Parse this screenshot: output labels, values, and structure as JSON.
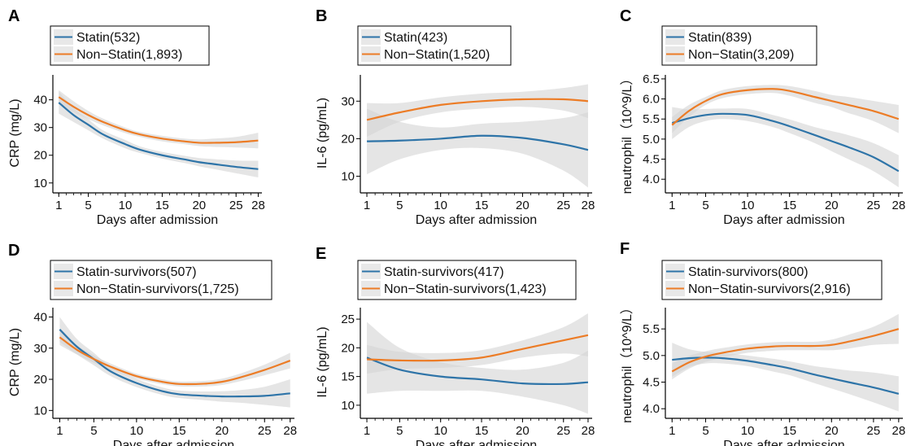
{
  "colors": {
    "statin": "#2e74a8",
    "non_statin": "#ec7c26",
    "ribbon": "#d3d3d3"
  },
  "chart_data": [
    {
      "type": "line",
      "panel": "A",
      "xlabel": "Days after admission",
      "ylabel": "CRP (mg/L)",
      "xticks": [
        1,
        5,
        10,
        15,
        20,
        25,
        28
      ],
      "yticks": [
        10,
        20,
        30,
        40
      ],
      "xlim": [
        0.2,
        28.5
      ],
      "ylim": [
        7,
        49
      ],
      "series": [
        {
          "name": "Statin(532)",
          "x": [
            1,
            3,
            5,
            7,
            10,
            12,
            15,
            18,
            20,
            22,
            25,
            28
          ],
          "y": [
            39,
            34.5,
            31,
            27.5,
            24,
            22,
            20,
            18.5,
            17.5,
            16.8,
            15.8,
            15
          ],
          "lower": [
            35,
            32,
            29,
            26,
            22.5,
            20.8,
            18.8,
            17.2,
            16,
            15,
            13.5,
            12
          ],
          "upper": [
            43,
            37,
            33,
            29,
            25.5,
            23.2,
            21.2,
            19.8,
            19,
            18.6,
            18.1,
            18
          ]
        },
        {
          "name": "Non−Statin(1,893)",
          "x": [
            1,
            3,
            5,
            7,
            10,
            12,
            15,
            18,
            20,
            22,
            25,
            28
          ],
          "y": [
            41,
            37.5,
            34.5,
            32,
            29,
            27.5,
            26,
            25,
            24.5,
            24.5,
            24.7,
            25.3
          ],
          "lower": [
            38.5,
            35.5,
            33,
            30.8,
            28,
            26.6,
            25,
            24,
            23.3,
            23,
            22.8,
            22.5
          ],
          "upper": [
            43.5,
            39.5,
            36,
            33.2,
            30,
            28.4,
            27,
            26,
            25.7,
            26,
            26.6,
            28.1
          ]
        }
      ]
    },
    {
      "type": "line",
      "panel": "B",
      "xlabel": "Days after admission",
      "ylabel": "IL-6 (pg/mL)",
      "xticks": [
        1,
        5,
        10,
        15,
        20,
        25,
        28
      ],
      "yticks": [
        10,
        20,
        30
      ],
      "xlim": [
        0.2,
        28.5
      ],
      "ylim": [
        6,
        37
      ],
      "series": [
        {
          "name": "Statin(423)",
          "x": [
            1,
            5,
            10,
            15,
            20,
            25,
            28
          ],
          "y": [
            19.3,
            19.5,
            20,
            20.8,
            20.2,
            18.5,
            17
          ],
          "lower": [
            10.5,
            14.5,
            17,
            17.5,
            16,
            11.5,
            7
          ],
          "upper": [
            28,
            24.5,
            23,
            24,
            24.5,
            25.5,
            27
          ]
        },
        {
          "name": "Non−Statin(1,520)",
          "x": [
            1,
            5,
            10,
            15,
            20,
            25,
            28
          ],
          "y": [
            25,
            27,
            29,
            30,
            30.5,
            30.5,
            30
          ],
          "lower": [
            20.5,
            24.5,
            27,
            28,
            28.5,
            27.5,
            25.5
          ],
          "upper": [
            29.5,
            29.5,
            31,
            32,
            32.5,
            33.5,
            34.5
          ]
        }
      ]
    },
    {
      "type": "line",
      "panel": "C",
      "xlabel": "Days after admission",
      "ylabel": "neutrophil（10^9/L）",
      "xticks": [
        1,
        5,
        10,
        15,
        20,
        25,
        28
      ],
      "yticks": [
        4.0,
        4.5,
        5.0,
        5.5,
        6.0,
        6.5
      ],
      "ytick_labels": [
        "4.0",
        "4.5",
        "5.0",
        "5.5",
        "6.0",
        "6.5"
      ],
      "xlim": [
        0.2,
        28.5
      ],
      "ylim": [
        3.7,
        6.6
      ],
      "series": [
        {
          "name": "Statin(839)",
          "x": [
            1,
            3,
            5,
            7,
            10,
            13,
            15,
            18,
            20,
            22,
            25,
            28
          ],
          "y": [
            5.4,
            5.52,
            5.6,
            5.63,
            5.6,
            5.45,
            5.32,
            5.1,
            4.95,
            4.8,
            4.55,
            4.2
          ],
          "lower": [
            5.0,
            5.3,
            5.45,
            5.5,
            5.45,
            5.3,
            5.15,
            4.9,
            4.7,
            4.5,
            4.2,
            3.8
          ],
          "upper": [
            5.8,
            5.74,
            5.75,
            5.76,
            5.75,
            5.6,
            5.49,
            5.3,
            5.2,
            5.1,
            4.9,
            4.6
          ]
        },
        {
          "name": "Non−Statin(3,209)",
          "x": [
            1,
            3,
            5,
            7,
            10,
            13,
            15,
            18,
            20,
            22,
            25,
            28
          ],
          "y": [
            5.35,
            5.7,
            5.95,
            6.12,
            6.22,
            6.25,
            6.2,
            6.05,
            5.95,
            5.85,
            5.7,
            5.5
          ],
          "lower": [
            5.15,
            5.55,
            5.85,
            6.02,
            6.12,
            6.15,
            6.08,
            5.9,
            5.8,
            5.65,
            5.45,
            5.15
          ],
          "upper": [
            5.55,
            5.85,
            6.05,
            6.22,
            6.32,
            6.35,
            6.32,
            6.2,
            6.1,
            6.05,
            5.95,
            5.85
          ]
        }
      ]
    },
    {
      "type": "line",
      "panel": "D",
      "xlabel": "Days after admission",
      "ylabel": "CRP (mg/L)",
      "xticks": [
        1,
        5,
        10,
        15,
        20,
        25,
        28
      ],
      "yticks": [
        10,
        20,
        30,
        40
      ],
      "xlim": [
        0.2,
        28.5
      ],
      "ylim": [
        8,
        43
      ],
      "series": [
        {
          "name": "Statin-survivors(507)",
          "x": [
            1,
            3,
            5,
            7,
            10,
            13,
            15,
            18,
            20,
            22,
            25,
            28
          ],
          "y": [
            36,
            30.5,
            26.5,
            22.5,
            18.8,
            16.2,
            15.2,
            14.7,
            14.5,
            14.5,
            14.7,
            15.5
          ],
          "lower": [
            32,
            28,
            24.5,
            21,
            17.5,
            15,
            14,
            13.3,
            12.8,
            12.5,
            11.8,
            11
          ],
          "upper": [
            40,
            33,
            28.5,
            24,
            20.1,
            17.4,
            16.4,
            16.1,
            16.2,
            16.5,
            17.6,
            20
          ]
        },
        {
          "name": "Non−Statin-survivors(1,725)",
          "x": [
            1,
            3,
            5,
            7,
            10,
            13,
            15,
            18,
            20,
            22,
            25,
            28
          ],
          "y": [
            33.5,
            29.5,
            26.5,
            24,
            21,
            19.2,
            18.5,
            18.6,
            19.2,
            20.5,
            23,
            26
          ],
          "lower": [
            31,
            28,
            25.3,
            23,
            20.2,
            18.4,
            17.7,
            17.7,
            18.2,
            19.3,
            21.3,
            23.5
          ],
          "upper": [
            36,
            31,
            27.7,
            25,
            21.8,
            20,
            19.3,
            19.5,
            20.2,
            21.7,
            24.7,
            28.5
          ]
        }
      ]
    },
    {
      "type": "line",
      "panel": "E",
      "xlabel": "Days after admission",
      "ylabel": "IL-6 (pg/mL)",
      "xticks": [
        1,
        5,
        10,
        15,
        20,
        25,
        28
      ],
      "yticks": [
        10,
        15,
        20,
        25
      ],
      "xlim": [
        0.2,
        28.5
      ],
      "ylim": [
        8,
        27
      ],
      "series": [
        {
          "name": "Statin-survivors(417)",
          "x": [
            1,
            5,
            10,
            15,
            20,
            25,
            28
          ],
          "y": [
            18.3,
            16.2,
            15,
            14.5,
            13.8,
            13.7,
            14
          ],
          "lower": [
            12,
            12.5,
            12.5,
            12.5,
            11.5,
            10,
            8.5
          ],
          "upper": [
            24.5,
            20,
            17.5,
            16.5,
            16.2,
            17.4,
            19.5
          ]
        },
        {
          "name": "Non−Statin-survivors(1,423)",
          "x": [
            1,
            5,
            10,
            15,
            20,
            25,
            28
          ],
          "y": [
            18,
            17.8,
            17.8,
            18.3,
            19.8,
            21.3,
            22.2
          ],
          "lower": [
            15.5,
            16.3,
            16.5,
            17,
            18.3,
            19,
            18.5
          ],
          "upper": [
            20.5,
            19.3,
            19.1,
            19.6,
            21.3,
            23.6,
            26
          ]
        }
      ]
    },
    {
      "type": "line",
      "panel": "F",
      "xlabel": "Days after admission",
      "ylabel": "neutrophil（10^9/L）",
      "xticks": [
        1,
        5,
        10,
        15,
        20,
        25,
        28
      ],
      "yticks": [
        4.0,
        4.5,
        5.0,
        5.5
      ],
      "ytick_labels": [
        "4.0",
        "4.5",
        "5.0",
        "5.5"
      ],
      "xlim": [
        0.2,
        28.5
      ],
      "ylim": [
        3.85,
        5.9
      ],
      "series": [
        {
          "name": "Statin-survivors(800)",
          "x": [
            1,
            3,
            5,
            7,
            10,
            13,
            15,
            18,
            20,
            22,
            25,
            28
          ],
          "y": [
            4.92,
            4.95,
            4.96,
            4.95,
            4.9,
            4.82,
            4.76,
            4.64,
            4.57,
            4.5,
            4.4,
            4.28
          ],
          "lower": [
            4.6,
            4.78,
            4.85,
            4.85,
            4.8,
            4.7,
            4.63,
            4.48,
            4.38,
            4.28,
            4.12,
            3.95
          ],
          "upper": [
            5.24,
            5.12,
            5.07,
            5.05,
            5.0,
            4.94,
            4.89,
            4.8,
            4.76,
            4.72,
            4.68,
            4.61
          ]
        },
        {
          "name": "Non−Statin-survivors(2,916)",
          "x": [
            1,
            3,
            5,
            7,
            10,
            13,
            15,
            18,
            20,
            22,
            25,
            28
          ],
          "y": [
            4.7,
            4.87,
            4.98,
            5.05,
            5.13,
            5.17,
            5.18,
            5.18,
            5.2,
            5.26,
            5.37,
            5.5
          ],
          "lower": [
            4.55,
            4.75,
            4.88,
            4.96,
            5.05,
            5.09,
            5.1,
            5.1,
            5.1,
            5.13,
            5.2,
            5.22
          ],
          "upper": [
            4.85,
            4.99,
            5.08,
            5.14,
            5.21,
            5.25,
            5.26,
            5.26,
            5.3,
            5.39,
            5.54,
            5.78
          ]
        }
      ]
    }
  ]
}
